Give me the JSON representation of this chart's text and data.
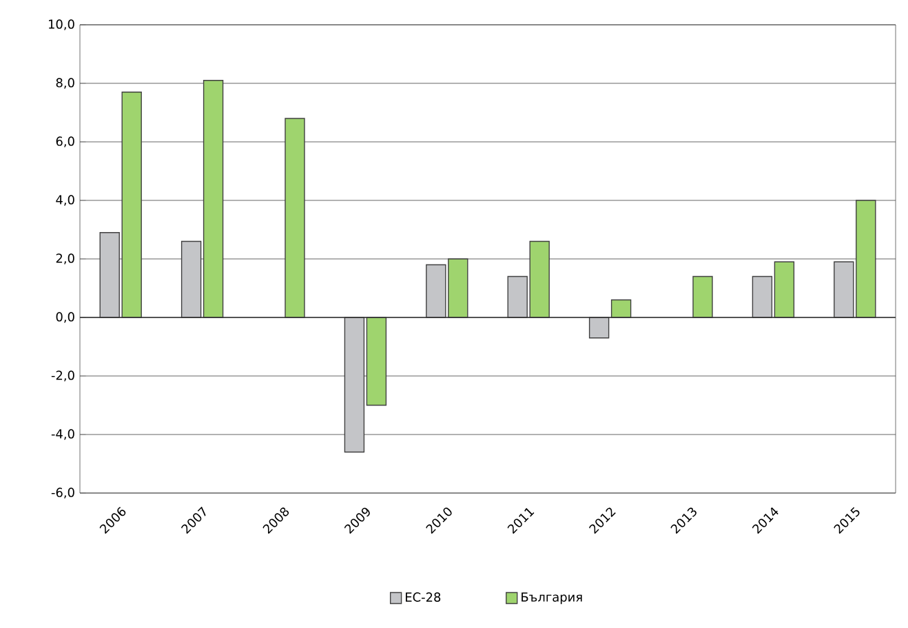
{
  "chart_data": {
    "type": "bar",
    "categories": [
      "2006",
      "2007",
      "2008",
      "2009",
      "2010",
      "2011",
      "2012",
      "2013",
      "2014",
      "2015"
    ],
    "series": [
      {
        "name": "ЕС-28",
        "color": "#c4c5c8",
        "values": [
          2.9,
          2.6,
          null,
          -4.6,
          1.8,
          1.4,
          -0.7,
          null,
          1.4,
          1.9
        ]
      },
      {
        "name": "България",
        "color": "#9fd46e",
        "values": [
          7.7,
          8.1,
          6.8,
          -3.0,
          2.0,
          2.6,
          0.6,
          1.4,
          1.9,
          4.0
        ]
      }
    ],
    "ylim": [
      -6,
      10
    ],
    "yticks": [
      {
        "value": -6,
        "label": "-6,0"
      },
      {
        "value": -4,
        "label": "-4,0"
      },
      {
        "value": -2,
        "label": "-2,0"
      },
      {
        "value": 0,
        "label": "0,0"
      },
      {
        "value": 2,
        "label": "2,0"
      },
      {
        "value": 4,
        "label": "4,0"
      },
      {
        "value": 6,
        "label": "6,0"
      },
      {
        "value": 8,
        "label": "8,0"
      },
      {
        "value": 10,
        "label": "10,0"
      }
    ],
    "grid": "y",
    "legend": "bottom"
  }
}
